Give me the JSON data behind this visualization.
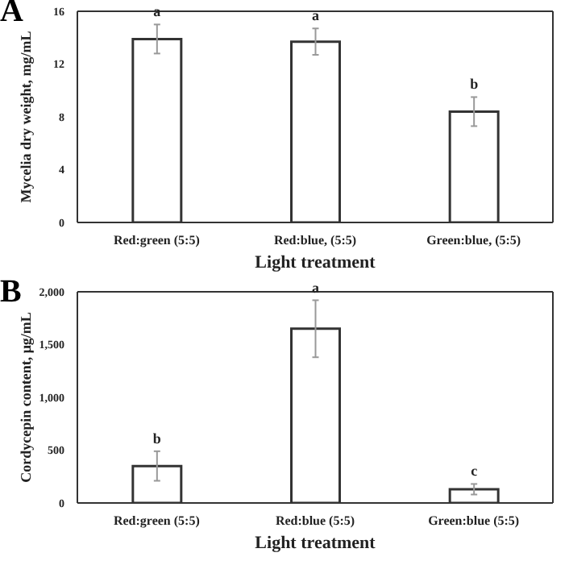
{
  "chart_data": [
    {
      "type": "bar",
      "title": "A",
      "xlabel": "Light treatment",
      "ylabel": "Mycelia dry weight, mg/mL",
      "categories": [
        "Red:green (5:5)",
        "Red:blue, (5:5)",
        "Green:blue, (5:5)"
      ],
      "values": [
        13.9,
        13.7,
        8.4
      ],
      "errors": [
        1.1,
        1.0,
        1.1
      ],
      "color": "#ffffff",
      "ylim": [
        0,
        16
      ],
      "yticks": [
        0,
        4,
        8,
        12,
        16
      ],
      "grid": false,
      "value_labels": [
        "a",
        "a",
        "b"
      ]
    },
    {
      "type": "bar",
      "title": "B",
      "xlabel": "Light treatment",
      "ylabel": "Cordycepin content,  μg/mL",
      "categories": [
        "Red:green (5:5)",
        "Red:blue (5:5)",
        "Green:blue (5:5)"
      ],
      "values": [
        350,
        1650,
        130
      ],
      "errors": [
        140,
        270,
        50
      ],
      "color": "#ffffff",
      "ylim": [
        0,
        2000
      ],
      "yticks": [
        0,
        {
          "value": 500,
          "label": "500"
        },
        {
          "value": 1000,
          "label": "1,000"
        },
        {
          "value": 1500,
          "label": "1,500"
        },
        {
          "value": 2000,
          "label": "2,000"
        }
      ],
      "grid": false,
      "value_labels": [
        "b",
        "a",
        "c"
      ]
    }
  ]
}
